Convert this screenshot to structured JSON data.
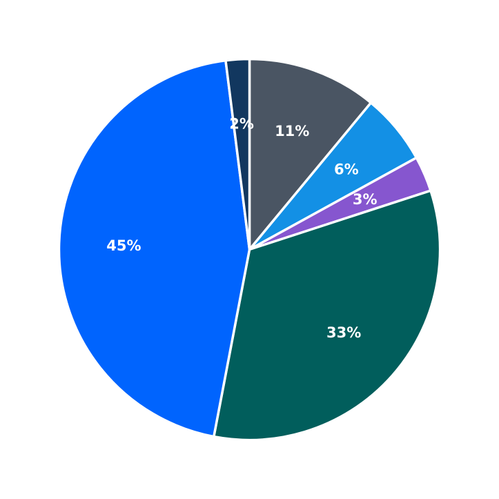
{
  "chart_data": {
    "type": "pie",
    "start_angle_deg": 90,
    "direction": "clockwise",
    "slices": [
      {
        "label": "11%",
        "value": 11,
        "color": "#4a5563"
      },
      {
        "label": "6%",
        "value": 6,
        "color": "#1390e5"
      },
      {
        "label": "3%",
        "value": 3,
        "color": "#8656cf"
      },
      {
        "label": "33%",
        "value": 33,
        "color": "#015e5c"
      },
      {
        "label": "45%",
        "value": 45,
        "color": "#0064fe"
      },
      {
        "label": "2%",
        "value": 2,
        "color": "#12375f"
      }
    ]
  }
}
